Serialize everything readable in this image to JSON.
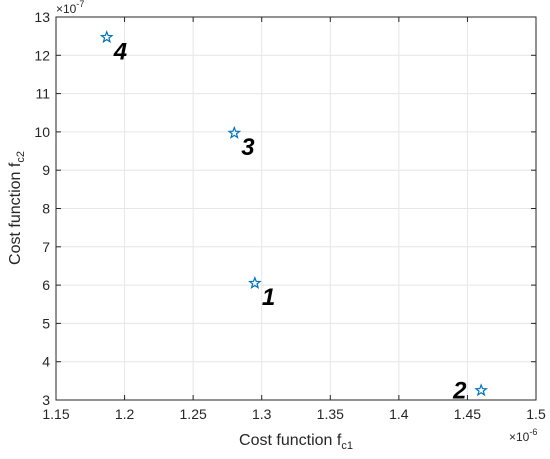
{
  "chart_data": {
    "type": "scatter",
    "xlabel_main": "Cost function f",
    "xlabel_sub": "c1",
    "ylabel_main": "Cost function f",
    "ylabel_sub": "c2",
    "x_multiplier": "×10",
    "x_exponent": "-6",
    "y_multiplier": "×10",
    "y_exponent": "-7",
    "xlim": [
      1.15,
      1.5
    ],
    "ylim": [
      3,
      13
    ],
    "xticks": [
      1.15,
      1.2,
      1.25,
      1.3,
      1.35,
      1.4,
      1.45,
      1.5
    ],
    "xtick_labels": [
      "1.15",
      "1.2",
      "1.25",
      "1.3",
      "1.35",
      "1.4",
      "1.45",
      "1.5"
    ],
    "yticks": [
      3,
      4,
      5,
      6,
      7,
      8,
      9,
      10,
      11,
      12,
      13
    ],
    "ytick_labels": [
      "3",
      "4",
      "5",
      "6",
      "7",
      "8",
      "9",
      "10",
      "11",
      "12",
      "13"
    ],
    "grid": true,
    "marker": "pentagram",
    "marker_color": "#0072BD",
    "points": [
      {
        "label": "1",
        "x": 1.295,
        "y": 6.05
      },
      {
        "label": "2",
        "x": 1.46,
        "y": 3.25
      },
      {
        "label": "3",
        "x": 1.28,
        "y": 9.97
      },
      {
        "label": "4",
        "x": 1.187,
        "y": 12.47
      }
    ]
  }
}
